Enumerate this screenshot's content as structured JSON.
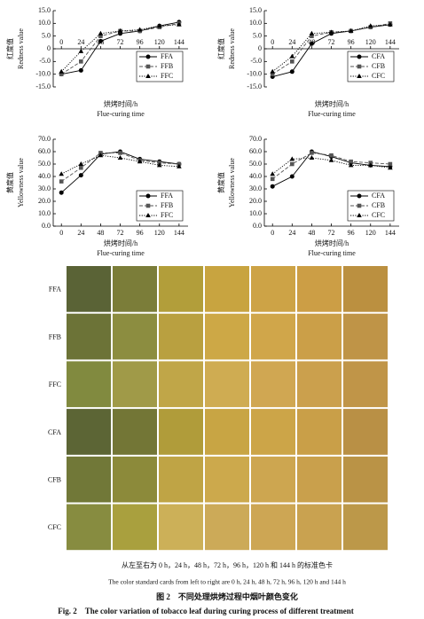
{
  "chart_data": [
    {
      "type": "line",
      "ylabel": "红度值",
      "ylabel_en": "Redness value",
      "xlabel": "烘烤时间/h",
      "xlabel_en": "Flue-curing time",
      "x": [
        0,
        24,
        48,
        72,
        96,
        120,
        144
      ],
      "xlim": [
        -10,
        155
      ],
      "xticks": [
        0,
        24,
        48,
        72,
        96,
        120,
        144
      ],
      "ylim": [
        -15,
        15
      ],
      "yticks": [
        {
          "value": -15,
          "label": "-15.0"
        },
        {
          "value": -10,
          "label": "-10.0"
        },
        {
          "value": -5,
          "label": "-5.0"
        },
        0,
        {
          "value": 5,
          "label": "5.0"
        },
        {
          "value": 10,
          "label": "10.0"
        },
        {
          "value": 15,
          "label": "15.0"
        }
      ],
      "legend": "lower right",
      "series": [
        {
          "name": "FFA",
          "color": "#000000",
          "marker": "circle",
          "dash": "solid",
          "values": [
            -10,
            -8.5,
            3,
            6,
            7,
            9,
            10.5
          ]
        },
        {
          "name": "FFB",
          "color": "#555555",
          "marker": "square",
          "dash": "dashed",
          "values": [
            -10,
            -5,
            5,
            7,
            7,
            8.5,
            10
          ]
        },
        {
          "name": "FFC",
          "color": "#000000",
          "marker": "triangle",
          "dash": "dotted",
          "values": [
            -9,
            -1,
            6,
            7,
            7.5,
            9,
            9.5
          ]
        }
      ]
    },
    {
      "type": "line",
      "ylabel": "红度值",
      "ylabel_en": "Redness value",
      "xlabel": "烘烤时间/h",
      "xlabel_en": "Flue-curing time",
      "x": [
        0,
        24,
        48,
        72,
        96,
        120,
        144
      ],
      "xlim": [
        -10,
        155
      ],
      "xticks": [
        0,
        24,
        48,
        72,
        96,
        120,
        144
      ],
      "ylim": [
        -15,
        15
      ],
      "yticks": [
        {
          "value": -15,
          "label": "-15.0"
        },
        {
          "value": -10,
          "label": "-10.0"
        },
        {
          "value": -5,
          "label": "-5.0"
        },
        0,
        {
          "value": 5,
          "label": "5.0"
        },
        {
          "value": 10,
          "label": "10.0"
        },
        {
          "value": 15,
          "label": "15.0"
        }
      ],
      "legend": "lower right",
      "series": [
        {
          "name": "CFA",
          "color": "#000000",
          "marker": "circle",
          "dash": "solid",
          "values": [
            -11,
            -9,
            2,
            6,
            7,
            8.5,
            9.5
          ]
        },
        {
          "name": "CFB",
          "color": "#555555",
          "marker": "square",
          "dash": "dashed",
          "values": [
            -10,
            -5,
            5,
            6.5,
            7,
            8.5,
            10
          ]
        },
        {
          "name": "CFC",
          "color": "#000000",
          "marker": "triangle",
          "dash": "dotted",
          "values": [
            -9,
            -3,
            6,
            6.5,
            7,
            9,
            9.5
          ]
        }
      ]
    },
    {
      "type": "line",
      "ylabel": "黄度值",
      "ylabel_en": "Yellowness value",
      "xlabel": "烘烤时间/h",
      "xlabel_en": "Flue-curing time",
      "x": [
        0,
        24,
        48,
        72,
        96,
        120,
        144
      ],
      "xlim": [
        -10,
        155
      ],
      "xticks": [
        0,
        24,
        48,
        72,
        96,
        120,
        144
      ],
      "ylim": [
        0,
        70
      ],
      "yticks": [
        {
          "value": 0,
          "label": "0.0"
        },
        {
          "value": 10,
          "label": "10.0"
        },
        {
          "value": 20,
          "label": "20.0"
        },
        {
          "value": 30,
          "label": "30.0"
        },
        {
          "value": 40,
          "label": "40.0"
        },
        {
          "value": 50,
          "label": "50.0"
        },
        {
          "value": 60,
          "label": "60.0"
        },
        {
          "value": 70,
          "label": "70.0"
        }
      ],
      "legend": "lower right",
      "series": [
        {
          "name": "FFA",
          "color": "#000000",
          "marker": "circle",
          "dash": "solid",
          "values": [
            27,
            41,
            58,
            60,
            54,
            52,
            50
          ]
        },
        {
          "name": "FFB",
          "color": "#555555",
          "marker": "square",
          "dash": "dashed",
          "values": [
            36,
            47,
            59,
            59,
            53,
            51,
            50
          ]
        },
        {
          "name": "FFC",
          "color": "#000000",
          "marker": "triangle",
          "dash": "dotted",
          "values": [
            42,
            50,
            57,
            55,
            52,
            49,
            48
          ]
        }
      ]
    },
    {
      "type": "line",
      "ylabel": "黄度值",
      "ylabel_en": "Yellowness value",
      "xlabel": "烘烤时间/h",
      "xlabel_en": "Flue-curing time",
      "x": [
        0,
        24,
        48,
        72,
        96,
        120,
        144
      ],
      "xlim": [
        -10,
        155
      ],
      "xticks": [
        0,
        24,
        48,
        72,
        96,
        120,
        144
      ],
      "ylim": [
        0,
        70
      ],
      "yticks": [
        {
          "value": 0,
          "label": "0.0"
        },
        {
          "value": 10,
          "label": "10.0"
        },
        {
          "value": 20,
          "label": "20.0"
        },
        {
          "value": 30,
          "label": "30.0"
        },
        {
          "value": 40,
          "label": "40.0"
        },
        {
          "value": 50,
          "label": "50.0"
        },
        {
          "value": 60,
          "label": "60.0"
        },
        {
          "value": 70,
          "label": "70.0"
        }
      ],
      "legend": "lower right",
      "series": [
        {
          "name": "CFA",
          "color": "#000000",
          "marker": "circle",
          "dash": "solid",
          "values": [
            32,
            40,
            60,
            56,
            51,
            49,
            48
          ]
        },
        {
          "name": "CFB",
          "color": "#555555",
          "marker": "square",
          "dash": "dashed",
          "values": [
            38,
            50,
            59,
            57,
            52,
            51,
            50
          ]
        },
        {
          "name": "CFC",
          "color": "#000000",
          "marker": "triangle",
          "dash": "dotted",
          "values": [
            42,
            54,
            55,
            53,
            49,
            49,
            47
          ]
        }
      ]
    }
  ],
  "color_cards": {
    "rows": [
      {
        "label": "FFA",
        "colors": [
          "#5a6336",
          "#7b7d39",
          "#b29e3a",
          "#c8a440",
          "#cda346",
          "#cc9e45",
          "#bb9040"
        ]
      },
      {
        "label": "FFB",
        "colors": [
          "#6c7337",
          "#8c8d40",
          "#b9a040",
          "#cda846",
          "#d0a64a",
          "#cb9f48",
          "#bf9447"
        ]
      },
      {
        "label": "FFC",
        "colors": [
          "#818a3f",
          "#a09a48",
          "#c0a648",
          "#cfac52",
          "#d0a752",
          "#cba04d",
          "#c09548"
        ]
      },
      {
        "label": "CFA",
        "colors": [
          "#5c6535",
          "#737636",
          "#b09c3a",
          "#c8a544",
          "#cca548",
          "#c99f48",
          "#b99045"
        ]
      },
      {
        "label": "CFB",
        "colors": [
          "#717838",
          "#8c8a3a",
          "#bfa445",
          "#cca94c",
          "#cda650",
          "#c9a04c",
          "#ba9346"
        ]
      },
      {
        "label": "CFC",
        "colors": [
          "#878c40",
          "#a9a03e",
          "#ccb058",
          "#ccaa58",
          "#cda654",
          "#c9a250",
          "#bc9849"
        ]
      }
    ]
  },
  "caption": {
    "note_cn": "从左至右为 0 h，24 h，48 h，72 h，96 h，120 h 和 144 h 的标准色卡",
    "note_en": "The color standard cards from left to right are 0 h, 24 h, 48 h, 72 h, 96 h, 120 h and 144 h",
    "title_cn": "图 2　不同处理烘烤过程中烟叶颜色变化",
    "title_en": "Fig. 2　The color variation of tobacco leaf during curing process of different treatment"
  }
}
